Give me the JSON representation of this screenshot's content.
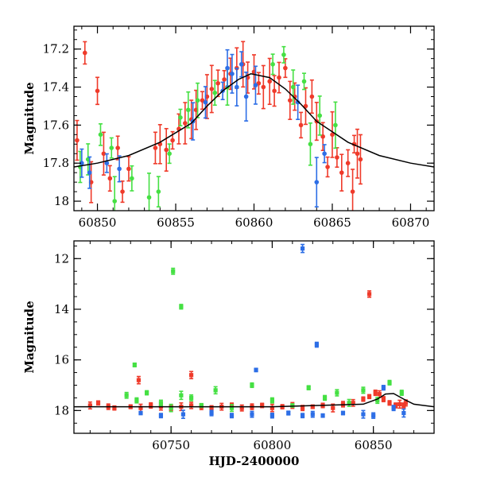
{
  "chart_data": [
    {
      "type": "scatter",
      "ylabel": "Magnitude",
      "xlabel": "",
      "xlim": [
        60848.5,
        60871.5
      ],
      "ylim": [
        18.05,
        17.08
      ],
      "y_inverted": true,
      "xticks": [
        60850,
        60855,
        60860,
        60865,
        60870
      ],
      "xtick_labels": [
        "60850",
        "60855",
        "60860",
        "60865",
        "60870"
      ],
      "yticks": [
        17.2,
        17.4,
        17.6,
        17.8,
        18.0
      ],
      "ytick_labels": [
        "17.2",
        "17.4",
        "17.6",
        "17.8",
        "18"
      ],
      "series": [
        {
          "color": "#ef3a2a",
          "x": [
            60848.7,
            60849.2,
            60849.6,
            60850.0,
            60850.4,
            60850.8,
            60851.3,
            60851.6,
            60852.0,
            60853.7,
            60854.0,
            60854.4,
            60854.8,
            60855.2,
            60855.6,
            60856.0,
            60856.3,
            60856.7,
            60857.0,
            60857.3,
            60857.7,
            60858.1,
            60858.5,
            60858.9,
            60859.3,
            60859.6,
            60860.0,
            60860.3,
            60860.6,
            60861.0,
            60861.3,
            60861.6,
            60862.0,
            60862.3,
            60862.6,
            60863.0,
            60863.3,
            60863.7,
            60864.0,
            60864.4,
            60864.7,
            60865.0,
            60865.3,
            60865.6,
            60866.0,
            60866.4,
            60866.6,
            60866.8,
            60866.3
          ],
          "y": [
            17.68,
            17.22,
            17.9,
            17.42,
            17.75,
            17.88,
            17.72,
            17.95,
            17.83,
            17.72,
            17.7,
            17.73,
            17.68,
            17.62,
            17.59,
            17.57,
            17.52,
            17.47,
            17.45,
            17.41,
            17.38,
            17.36,
            17.33,
            17.3,
            17.28,
            17.35,
            17.32,
            17.38,
            17.4,
            17.37,
            17.42,
            17.35,
            17.3,
            17.47,
            17.45,
            17.6,
            17.5,
            17.45,
            17.58,
            17.66,
            17.82,
            17.65,
            17.77,
            17.85,
            17.8,
            17.7,
            17.75,
            17.78,
            17.95
          ]
        },
        {
          "color": "#45e043",
          "x": [
            60848.9,
            60849.4,
            60850.2,
            60850.9,
            60851.1,
            60852.2,
            60853.3,
            60853.9,
            60854.6,
            60855.3,
            60855.8,
            60856.4,
            60857.5,
            60858.3,
            60861.2,
            60861.9,
            60862.5,
            60863.2,
            60863.6,
            60864.2,
            60865.2
          ],
          "y": [
            17.82,
            17.78,
            17.65,
            17.72,
            18.0,
            17.88,
            17.98,
            17.95,
            17.75,
            17.56,
            17.52,
            17.47,
            17.43,
            17.4,
            17.28,
            17.23,
            17.4,
            17.37,
            17.7,
            17.55,
            17.6
          ]
        },
        {
          "color": "#2d6ee6",
          "x": [
            60849.0,
            60849.5,
            60850.6,
            60851.4,
            60856.1,
            60856.9,
            60858.0,
            60858.3,
            60858.6,
            60858.9,
            60859.2,
            60859.5,
            60860.1,
            60862.8,
            60864.0,
            60864.5
          ],
          "y": [
            17.8,
            17.85,
            17.8,
            17.83,
            17.58,
            17.48,
            17.42,
            17.3,
            17.33,
            17.4,
            17.28,
            17.45,
            17.39,
            17.48,
            17.9,
            17.75
          ]
        }
      ],
      "model_curve": {
        "color": "#000000",
        "x": [
          60848.5,
          60850,
          60852,
          60854,
          60856,
          60857,
          60858,
          60859,
          60859.8,
          60861,
          60862,
          60863,
          60864,
          60866,
          60868,
          60870,
          60871.5
        ],
        "y": [
          17.82,
          17.8,
          17.76,
          17.69,
          17.59,
          17.5,
          17.42,
          17.36,
          17.33,
          17.35,
          17.41,
          17.49,
          17.58,
          17.69,
          17.76,
          17.8,
          17.82
        ]
      }
    },
    {
      "type": "scatter",
      "ylabel": "Magnitude",
      "xlabel": "HJD-2400000",
      "xlim": [
        60702,
        60880
      ],
      "ylim": [
        18.9,
        11.3
      ],
      "y_inverted": true,
      "xticks": [
        60750,
        60800,
        60850
      ],
      "xtick_labels": [
        "60750",
        "60800",
        "60850"
      ],
      "yticks": [
        12,
        14,
        16,
        18
      ],
      "ytick_labels": [
        "12",
        "14",
        "16",
        "18"
      ],
      "series": [
        {
          "color": "#ef3a2a",
          "x": [
            60710,
            60714,
            60719,
            60722,
            60730,
            60735,
            60740,
            60745,
            60750,
            60755,
            60760,
            60765,
            60770,
            60775,
            60780,
            60785,
            60790,
            60795,
            60800,
            60805,
            60810,
            60815,
            60820,
            60825,
            60830,
            60835,
            60840,
            60845,
            60848,
            60851,
            60853,
            60855,
            60858,
            60861,
            60863,
            60865,
            60866,
            60760,
            60734,
            60848
          ],
          "y": [
            17.8,
            17.7,
            17.85,
            17.9,
            17.85,
            17.9,
            17.8,
            17.85,
            17.9,
            17.85,
            17.8,
            17.85,
            17.9,
            17.85,
            17.8,
            17.9,
            17.85,
            17.8,
            17.9,
            17.85,
            17.8,
            17.9,
            17.85,
            17.8,
            17.9,
            17.75,
            17.7,
            17.55,
            17.45,
            17.3,
            17.35,
            17.55,
            17.7,
            17.8,
            17.75,
            17.8,
            17.7,
            16.6,
            16.8,
            13.4
          ]
        },
        {
          "color": "#45e043",
          "x": [
            60728,
            60733,
            60738,
            60745,
            60750,
            60755,
            60760,
            60765,
            60772,
            60780,
            60790,
            60800,
            60810,
            60818,
            60826,
            60832,
            60838,
            60845,
            60852,
            60858,
            60864,
            60755,
            60751,
            60732
          ],
          "y": [
            17.4,
            17.6,
            17.3,
            17.7,
            17.9,
            17.4,
            17.5,
            17.8,
            17.2,
            17.9,
            17.0,
            17.6,
            17.8,
            17.1,
            17.5,
            17.3,
            17.7,
            17.2,
            17.6,
            16.9,
            17.3,
            13.9,
            12.5,
            16.2
          ]
        },
        {
          "color": "#2d6ee6",
          "x": [
            60735,
            60745,
            60756,
            60770,
            60780,
            60790,
            60800,
            60808,
            60815,
            60820,
            60825,
            60835,
            60845,
            60850,
            60855,
            60860,
            60865,
            60792,
            60822,
            60815
          ],
          "y": [
            18.1,
            18.2,
            18.15,
            18.1,
            18.2,
            18.15,
            18.2,
            18.1,
            18.2,
            18.15,
            18.2,
            18.1,
            18.15,
            18.2,
            17.1,
            17.9,
            18.1,
            16.4,
            15.4,
            11.6
          ]
        }
      ],
      "model_curve": {
        "color": "#000000",
        "x": [
          60702,
          60800,
          60845,
          60852,
          60856,
          60860,
          60865,
          60870,
          60880
        ],
        "y": [
          17.85,
          17.85,
          17.75,
          17.55,
          17.35,
          17.33,
          17.55,
          17.75,
          17.85
        ]
      }
    }
  ]
}
